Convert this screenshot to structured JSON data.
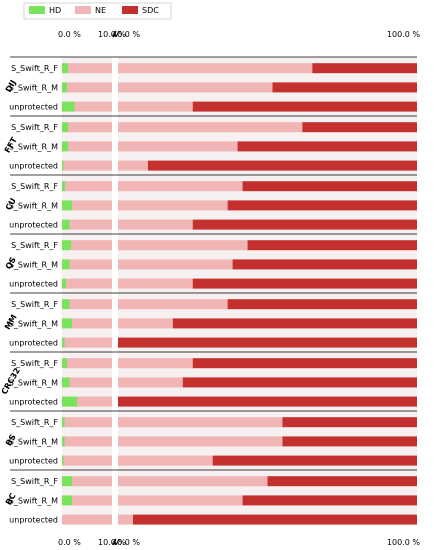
{
  "chart_data": {
    "type": "bar",
    "orientation": "horizontal-stacked-100",
    "colors": {
      "HD": "#78e35b",
      "NE": "#f1b5b5",
      "SDC": "#c4302e"
    },
    "legend": {
      "placement": "top-left",
      "items": [
        "HD",
        "NE",
        "SDC"
      ]
    },
    "x_axis": {
      "break": true,
      "left_range": [
        0,
        10
      ],
      "right_range": [
        40,
        100
      ],
      "ticks": [
        "0.0 %",
        "10.0 %",
        "40.0 %",
        "100.0 %"
      ]
    },
    "row_labels": [
      "S_Swift_R_F",
      "S_Swift_R_M",
      "unprotected"
    ],
    "groups": [
      {
        "name": "DIJ",
        "rows": [
          {
            "label": "S_Swift_R_F",
            "HD": 1.2,
            "NE": 77.8,
            "SDC": 21.0
          },
          {
            "label": "S_Swift_R_M",
            "HD": 1.0,
            "NE": 70.0,
            "SDC": 29.0
          },
          {
            "label": "unprotected",
            "HD": 2.5,
            "NE": 52.5,
            "SDC": 45.0
          }
        ]
      },
      {
        "name": "FFT",
        "rows": [
          {
            "label": "S_Swift_R_F",
            "HD": 1.2,
            "NE": 75.8,
            "SDC": 23.0
          },
          {
            "label": "S_Swift_R_M",
            "HD": 1.2,
            "NE": 62.8,
            "SDC": 36.0
          },
          {
            "label": "unprotected",
            "HD": 0.3,
            "NE": 45.7,
            "SDC": 54.0
          }
        ]
      },
      {
        "name": "CU",
        "rows": [
          {
            "label": "S_Swift_R_F",
            "HD": 0.6,
            "NE": 64.4,
            "SDC": 35.0
          },
          {
            "label": "S_Swift_R_M",
            "HD": 2.0,
            "NE": 60.0,
            "SDC": 38.0
          },
          {
            "label": "unprotected",
            "HD": 1.5,
            "NE": 53.5,
            "SDC": 45.0
          }
        ]
      },
      {
        "name": "QS",
        "rows": [
          {
            "label": "S_Swift_R_F",
            "HD": 1.8,
            "NE": 64.2,
            "SDC": 34.0
          },
          {
            "label": "S_Swift_R_M",
            "HD": 1.5,
            "NE": 61.5,
            "SDC": 37.0
          },
          {
            "label": "unprotected",
            "HD": 0.8,
            "NE": 54.2,
            "SDC": 45.0
          }
        ]
      },
      {
        "name": "MM",
        "rows": [
          {
            "label": "S_Swift_R_F",
            "HD": 1.5,
            "NE": 60.5,
            "SDC": 38.0
          },
          {
            "label": "S_Swift_R_M",
            "HD": 2.0,
            "NE": 49.0,
            "SDC": 49.0
          },
          {
            "label": "unprotected",
            "HD": 0.5,
            "NE": 39.5,
            "SDC": 60.0
          }
        ]
      },
      {
        "name": "CRC32",
        "rows": [
          {
            "label": "S_Swift_R_F",
            "HD": 1.0,
            "NE": 54.0,
            "SDC": 45.0
          },
          {
            "label": "S_Swift_R_M",
            "HD": 1.5,
            "NE": 51.5,
            "SDC": 47.0
          },
          {
            "label": "unprotected",
            "HD": 3.0,
            "NE": 37.0,
            "SDC": 60.0
          }
        ]
      },
      {
        "name": "BS",
        "rows": [
          {
            "label": "S_Swift_R_F",
            "HD": 0.5,
            "NE": 72.5,
            "SDC": 27.0
          },
          {
            "label": "S_Swift_R_M",
            "HD": 0.5,
            "NE": 72.5,
            "SDC": 27.0
          },
          {
            "label": "unprotected",
            "HD": 0.3,
            "NE": 58.7,
            "SDC": 41.0
          }
        ]
      },
      {
        "name": "BC",
        "rows": [
          {
            "label": "S_Swift_R_F",
            "HD": 2.0,
            "NE": 68.0,
            "SDC": 30.0
          },
          {
            "label": "S_Swift_R_M",
            "HD": 2.0,
            "NE": 63.0,
            "SDC": 35.0
          },
          {
            "label": "unprotected",
            "HD": 0.0,
            "NE": 43.0,
            "SDC": 57.0
          }
        ]
      }
    ]
  }
}
